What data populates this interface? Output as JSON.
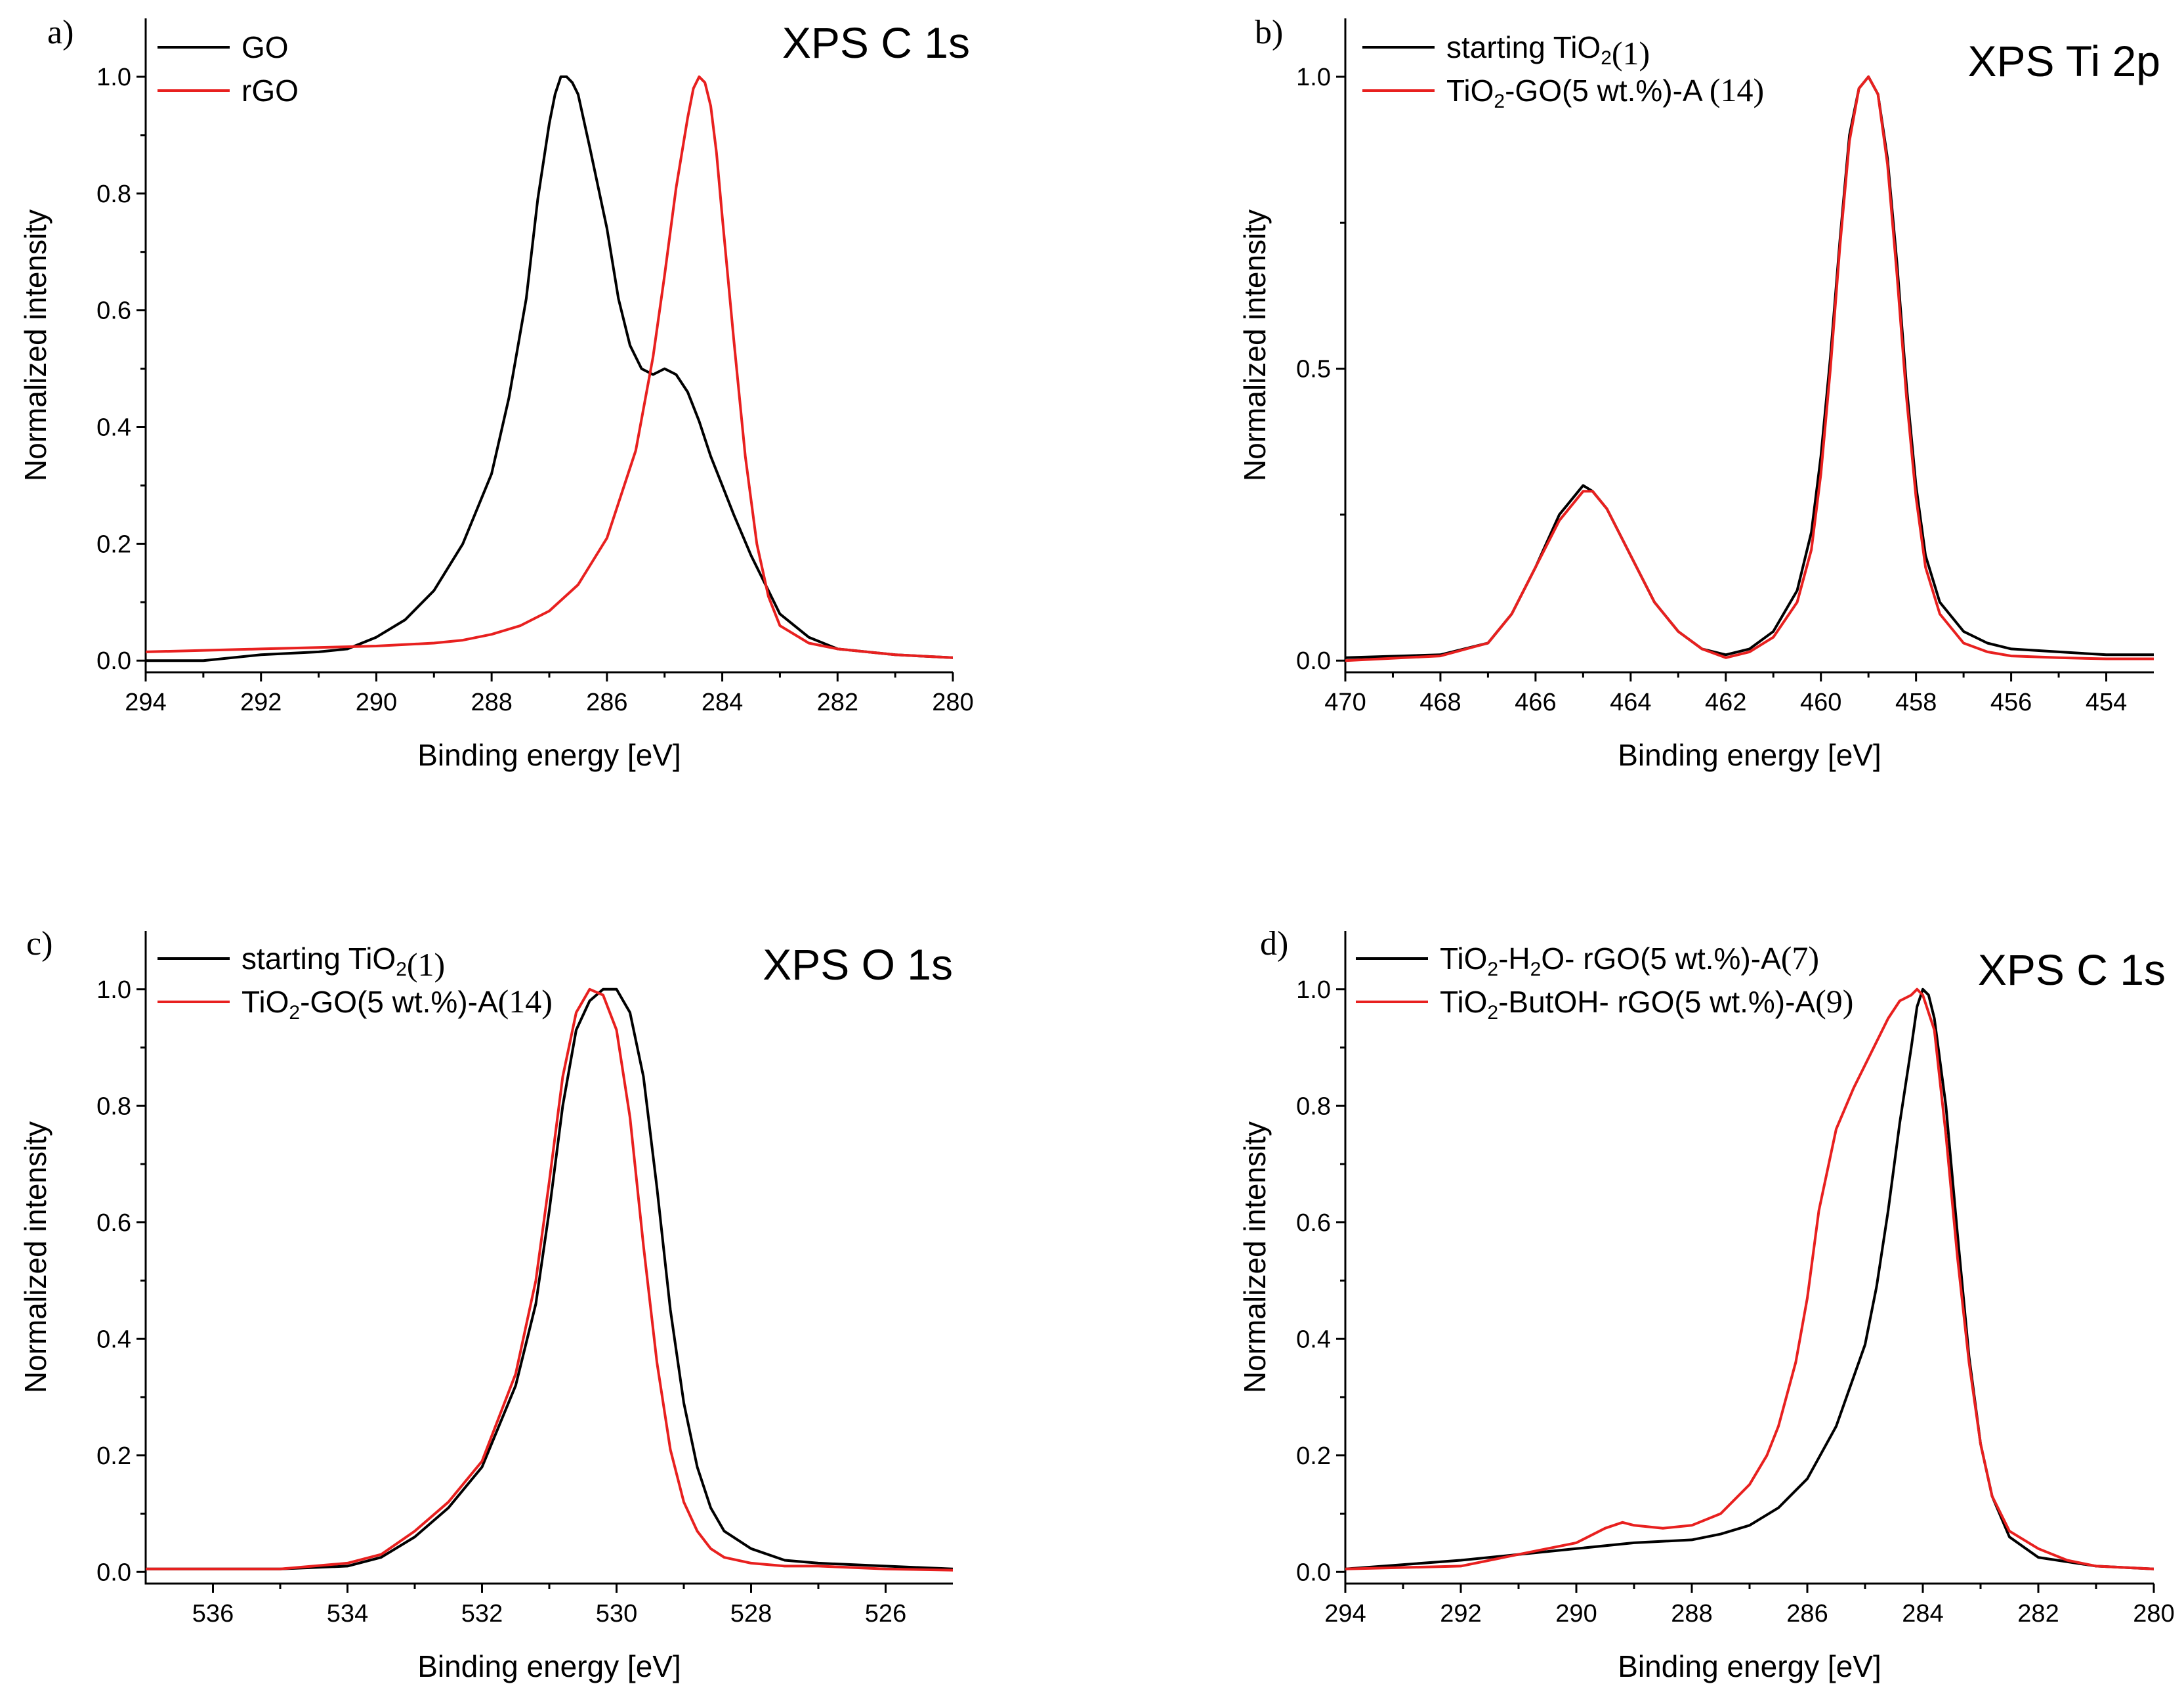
{
  "chart_data": [
    {
      "type": "line",
      "panel": "a)",
      "title": "XPS C 1s",
      "xlabel": "Binding energy [eV]",
      "ylabel": "Normalized intensity",
      "xlim": [
        294,
        280
      ],
      "ylim": [
        -0.02,
        1.1
      ],
      "xticks": [
        294,
        292,
        290,
        288,
        286,
        284,
        282,
        280
      ],
      "yticks": [
        0.0,
        0.2,
        0.4,
        0.6,
        0.8,
        1.0
      ],
      "ytick_labels": [
        "0.0",
        "0.2",
        "0.4",
        "0.6",
        "0.8",
        "1.0"
      ],
      "legend_position": "top-left",
      "series": [
        {
          "name": "GO",
          "name_parts": [
            "GO"
          ],
          "suffix": "",
          "color": "#000000",
          "x": [
            294,
            293,
            292,
            291,
            290.5,
            290,
            289.5,
            289,
            288.5,
            288,
            287.7,
            287.4,
            287.2,
            287,
            286.9,
            286.8,
            286.7,
            286.6,
            286.5,
            286.3,
            286,
            285.8,
            285.6,
            285.4,
            285.2,
            285,
            284.8,
            284.6,
            284.4,
            284.2,
            284,
            283.8,
            283.5,
            283.2,
            283,
            282.5,
            282,
            281,
            280
          ],
          "y": [
            0.0,
            0.0,
            0.01,
            0.015,
            0.02,
            0.04,
            0.07,
            0.12,
            0.2,
            0.32,
            0.45,
            0.62,
            0.79,
            0.92,
            0.97,
            1.0,
            1.0,
            0.99,
            0.97,
            0.88,
            0.74,
            0.62,
            0.54,
            0.5,
            0.49,
            0.5,
            0.49,
            0.46,
            0.41,
            0.35,
            0.3,
            0.25,
            0.18,
            0.12,
            0.08,
            0.04,
            0.02,
            0.01,
            0.005
          ]
        },
        {
          "name": "rGO",
          "name_parts": [
            "rGO"
          ],
          "suffix": "",
          "color": "#e8201f",
          "x": [
            294,
            292,
            290,
            289,
            288.5,
            288,
            287.5,
            287,
            286.5,
            286,
            285.5,
            285.2,
            285,
            284.8,
            284.6,
            284.5,
            284.4,
            284.3,
            284.2,
            284.1,
            284,
            283.8,
            283.6,
            283.4,
            283.2,
            283,
            282.5,
            282,
            281,
            280
          ],
          "y": [
            0.015,
            0.02,
            0.025,
            0.03,
            0.035,
            0.045,
            0.06,
            0.085,
            0.13,
            0.21,
            0.36,
            0.52,
            0.66,
            0.81,
            0.93,
            0.98,
            1.0,
            0.99,
            0.95,
            0.87,
            0.76,
            0.55,
            0.35,
            0.2,
            0.11,
            0.06,
            0.03,
            0.02,
            0.01,
            0.005
          ]
        }
      ]
    },
    {
      "type": "line",
      "panel": "b)",
      "title": "XPS Ti 2p",
      "xlabel": "Binding energy [eV]",
      "ylabel": "Normalized intensity",
      "xlim": [
        470,
        453
      ],
      "ylim": [
        -0.02,
        1.1
      ],
      "xticks": [
        470,
        468,
        466,
        464,
        462,
        460,
        458,
        456,
        454
      ],
      "yticks": [
        0.0,
        0.5,
        1.0
      ],
      "ytick_labels": [
        "0.0",
        "0.5",
        "1.0"
      ],
      "legend_position": "top-left",
      "series": [
        {
          "name": "starting TiO2(1)",
          "name_parts": [
            "starting TiO",
            "2",
            ""
          ],
          "suffix": "(1)",
          "color": "#000000",
          "x": [
            470,
            468,
            467,
            466.5,
            466,
            465.5,
            465.2,
            465,
            464.8,
            464.5,
            464,
            463.5,
            463,
            462.5,
            462,
            461.5,
            461,
            460.5,
            460.2,
            460,
            459.8,
            459.6,
            459.4,
            459.2,
            459,
            458.8,
            458.6,
            458.4,
            458.2,
            458,
            457.8,
            457.5,
            457,
            456.5,
            456,
            455,
            454,
            453
          ],
          "y": [
            0.005,
            0.01,
            0.03,
            0.08,
            0.16,
            0.25,
            0.28,
            0.3,
            0.29,
            0.26,
            0.18,
            0.1,
            0.05,
            0.02,
            0.01,
            0.02,
            0.05,
            0.12,
            0.22,
            0.35,
            0.52,
            0.72,
            0.9,
            0.98,
            1.0,
            0.97,
            0.86,
            0.68,
            0.47,
            0.3,
            0.18,
            0.1,
            0.05,
            0.03,
            0.02,
            0.015,
            0.01,
            0.01
          ]
        },
        {
          "name": "TiO2-GO(5 wt.%)-A (14)",
          "name_parts": [
            "TiO",
            "2",
            "-GO(5 wt.%)-A "
          ],
          "suffix": "(14)",
          "color": "#e8201f",
          "x": [
            470,
            468,
            467,
            466.5,
            466,
            465.5,
            465.2,
            465,
            464.8,
            464.5,
            464,
            463.5,
            463,
            462.5,
            462,
            461.5,
            461,
            460.5,
            460.2,
            460,
            459.8,
            459.6,
            459.4,
            459.2,
            459,
            458.8,
            458.6,
            458.4,
            458.2,
            458,
            457.8,
            457.5,
            457,
            456.5,
            456,
            455,
            454,
            453
          ],
          "y": [
            0.0,
            0.008,
            0.03,
            0.08,
            0.16,
            0.24,
            0.27,
            0.29,
            0.29,
            0.26,
            0.18,
            0.1,
            0.05,
            0.02,
            0.005,
            0.015,
            0.04,
            0.1,
            0.19,
            0.32,
            0.5,
            0.71,
            0.89,
            0.98,
            1.0,
            0.97,
            0.85,
            0.66,
            0.45,
            0.28,
            0.16,
            0.08,
            0.03,
            0.015,
            0.008,
            0.005,
            0.003,
            0.003
          ]
        }
      ]
    },
    {
      "type": "line",
      "panel": "c)",
      "title": "XPS O 1s",
      "xlabel": "Binding energy [eV]",
      "ylabel": "Normalized intensity",
      "xlim": [
        537,
        525
      ],
      "ylim": [
        -0.02,
        1.1
      ],
      "xticks": [
        536,
        534,
        532,
        530,
        528,
        526
      ],
      "yticks": [
        0.0,
        0.2,
        0.4,
        0.6,
        0.8,
        1.0
      ],
      "ytick_labels": [
        "0.0",
        "0.2",
        "0.4",
        "0.6",
        "0.8",
        "1.0"
      ],
      "legend_position": "top-left",
      "series": [
        {
          "name": "starting TiO2(1)",
          "name_parts": [
            "starting TiO",
            "2",
            ""
          ],
          "suffix": "(1)",
          "color": "#000000",
          "x": [
            537,
            535,
            534,
            533.5,
            533,
            532.5,
            532,
            531.5,
            531.2,
            531,
            530.8,
            530.6,
            530.4,
            530.2,
            530,
            529.8,
            529.6,
            529.4,
            529.2,
            529,
            528.8,
            528.6,
            528.4,
            528,
            527.5,
            527,
            526,
            525
          ],
          "y": [
            0.005,
            0.005,
            0.01,
            0.025,
            0.06,
            0.11,
            0.18,
            0.32,
            0.46,
            0.62,
            0.8,
            0.93,
            0.98,
            1.0,
            1.0,
            0.96,
            0.85,
            0.66,
            0.45,
            0.29,
            0.18,
            0.11,
            0.07,
            0.04,
            0.02,
            0.015,
            0.01,
            0.005
          ]
        },
        {
          "name": "TiO2-GO(5 wt.%)-A(14)",
          "name_parts": [
            "TiO",
            "2",
            "-GO(5 wt.%)-A"
          ],
          "suffix": "(14)",
          "color": "#e8201f",
          "x": [
            537,
            535,
            534,
            533.5,
            533,
            532.5,
            532,
            531.5,
            531.2,
            531,
            530.8,
            530.6,
            530.4,
            530.2,
            530,
            529.8,
            529.6,
            529.4,
            529.2,
            529,
            528.8,
            528.6,
            528.4,
            528,
            527.5,
            527,
            526,
            525
          ],
          "y": [
            0.005,
            0.005,
            0.015,
            0.03,
            0.07,
            0.12,
            0.19,
            0.34,
            0.5,
            0.67,
            0.85,
            0.96,
            1.0,
            0.99,
            0.93,
            0.78,
            0.56,
            0.36,
            0.21,
            0.12,
            0.07,
            0.04,
            0.025,
            0.015,
            0.01,
            0.01,
            0.005,
            0.003
          ]
        }
      ]
    },
    {
      "type": "line",
      "panel": "d)",
      "title": "XPS C 1s",
      "xlabel": "Binding energy [eV]",
      "ylabel": "Normalized intensity",
      "xlim": [
        294,
        280
      ],
      "ylim": [
        -0.02,
        1.1
      ],
      "xticks": [
        294,
        292,
        290,
        288,
        286,
        284,
        282,
        280
      ],
      "yticks": [
        0.0,
        0.2,
        0.4,
        0.6,
        0.8,
        1.0
      ],
      "ytick_labels": [
        "0.0",
        "0.2",
        "0.4",
        "0.6",
        "0.8",
        "1.0"
      ],
      "legend_position": "top-left",
      "series": [
        {
          "name": "TiO2-H2O- rGO(5 wt.%)-A(7)",
          "name_parts": [
            "TiO",
            "2",
            "-H",
            "2",
            "O- rGO(5 wt.%)-A"
          ],
          "suffix": "(7)",
          "color": "#000000",
          "x": [
            294,
            292,
            290,
            289,
            288,
            287.5,
            287,
            286.5,
            286,
            285.5,
            285,
            284.8,
            284.6,
            284.4,
            284.2,
            284.1,
            284,
            283.9,
            283.8,
            283.6,
            283.4,
            283.2,
            283,
            282.8,
            282.5,
            282,
            281,
            280
          ],
          "y": [
            0.005,
            0.02,
            0.04,
            0.05,
            0.055,
            0.065,
            0.08,
            0.11,
            0.16,
            0.25,
            0.39,
            0.49,
            0.62,
            0.77,
            0.9,
            0.97,
            1.0,
            0.99,
            0.95,
            0.8,
            0.58,
            0.37,
            0.22,
            0.13,
            0.06,
            0.025,
            0.01,
            0.005
          ]
        },
        {
          "name": "TiO2-ButOH- rGO(5 wt.%)-A(9)",
          "name_parts": [
            "TiO",
            "2",
            "-ButOH- rGO(5 wt.%)-A"
          ],
          "suffix": "(9)",
          "color": "#e8201f",
          "x": [
            294,
            292,
            291,
            290,
            289.5,
            289.2,
            289,
            288.5,
            288,
            287.5,
            287,
            286.7,
            286.5,
            286.2,
            286,
            285.8,
            285.5,
            285.2,
            285,
            284.8,
            284.6,
            284.4,
            284.2,
            284.1,
            284,
            283.8,
            283.6,
            283.4,
            283.2,
            283,
            282.8,
            282.5,
            282,
            281.5,
            281,
            280
          ],
          "y": [
            0.005,
            0.01,
            0.03,
            0.05,
            0.075,
            0.085,
            0.08,
            0.075,
            0.08,
            0.1,
            0.15,
            0.2,
            0.25,
            0.36,
            0.47,
            0.62,
            0.76,
            0.83,
            0.87,
            0.91,
            0.95,
            0.98,
            0.99,
            1.0,
            0.99,
            0.93,
            0.75,
            0.54,
            0.36,
            0.22,
            0.13,
            0.07,
            0.04,
            0.02,
            0.01,
            0.005
          ]
        }
      ]
    }
  ]
}
